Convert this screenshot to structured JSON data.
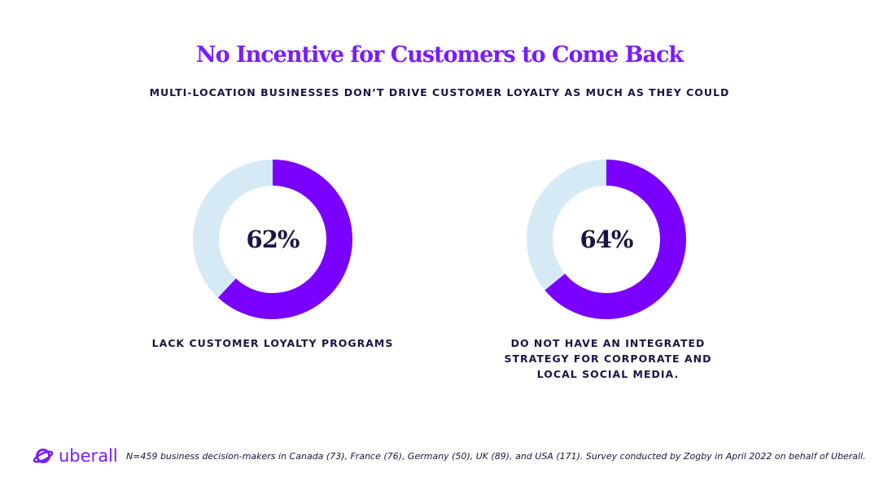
{
  "title": "No Incentive for Customers to Come Back",
  "subtitle": "MULTI-LOCATION BUSINESSES DON’T DRIVE CUSTOMER LOYALTY AS MUCH AS THEY COULD",
  "colors": {
    "accent": "#7a00ff",
    "remainder": "#d6eaf6",
    "text": "#1c1345",
    "title": "#7a1cff"
  },
  "chart_data": [
    {
      "type": "pie",
      "donut": true,
      "value": 62,
      "label": "62%",
      "caption": "LACK CUSTOMER LOYALTY PROGRAMS"
    },
    {
      "type": "pie",
      "donut": true,
      "value": 64,
      "label": "64%",
      "caption": "DO NOT HAVE AN INTEGRATED STRATEGY FOR CORPORATE AND LOCAL SOCIAL MEDIA."
    }
  ],
  "footer": {
    "logo": "uberall",
    "note": "N=459 business decision-makers in Canada (73), France (76), Germany (50), UK (89), and USA (171). Survey conducted by Zogby in April 2022 on behalf of Uberall."
  }
}
